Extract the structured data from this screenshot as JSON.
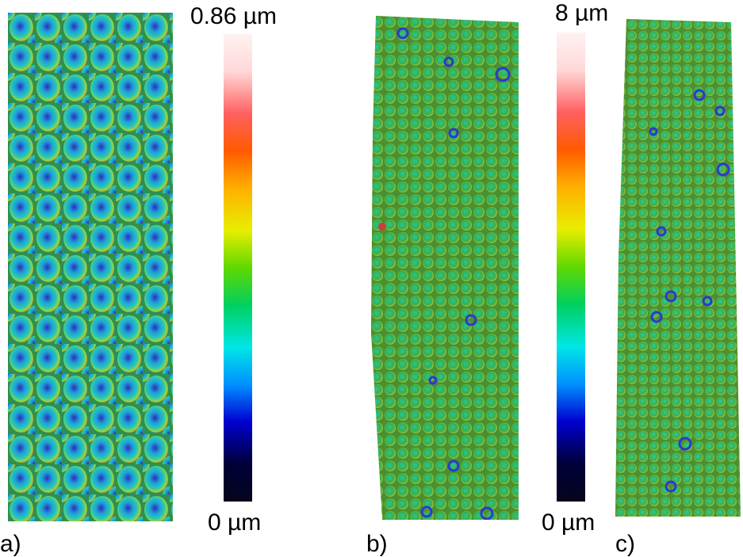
{
  "panels": {
    "a": {
      "label": "a)"
    },
    "b": {
      "label": "b)"
    },
    "c": {
      "label": "c)"
    }
  },
  "colorbars": {
    "first": {
      "max_label": "0.86 µm",
      "min_label": "0 µm",
      "max_value": 0.86,
      "min_value": 0,
      "unit": "µm"
    },
    "second": {
      "max_label": "8 µm",
      "min_label": "0 µm",
      "max_value": 8,
      "min_value": 0,
      "unit": "µm"
    }
  },
  "colormap": [
    "#05051c",
    "#000038",
    "#0000d0",
    "#0090ff",
    "#00e6e6",
    "#00d060",
    "#60d800",
    "#e8ee00",
    "#ffb000",
    "#ff5a00",
    "#ff6060",
    "#ffd8d8",
    "#fff2f2"
  ]
}
